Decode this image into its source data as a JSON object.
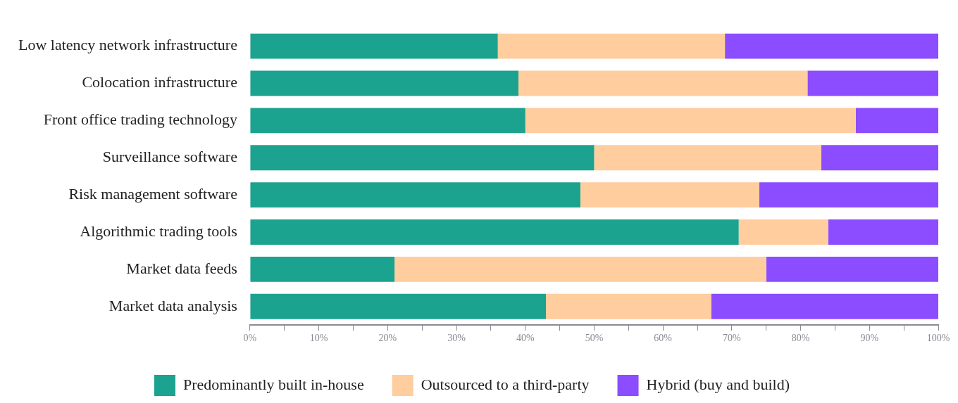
{
  "chart_data": {
    "type": "bar",
    "orientation": "horizontal",
    "stacked": true,
    "categories": [
      "Low latency network infrastructure",
      "Colocation infrastructure",
      "Front office trading technology",
      "Surveillance software",
      "Risk management software",
      "Algorithmic trading tools",
      "Market data feeds",
      "Market data analysis"
    ],
    "series": [
      {
        "name": "Predominantly built in-house",
        "color": "#1ba38f",
        "values": [
          36,
          39,
          40,
          50,
          48,
          71,
          21,
          43
        ]
      },
      {
        "name": "Outsourced to a third-party",
        "color": "#ffcd9e",
        "values": [
          33,
          42,
          48,
          33,
          26,
          13,
          54,
          24
        ]
      },
      {
        "name": "Hybrid (buy and build)",
        "color": "#8b4dff",
        "values": [
          31,
          19,
          12,
          17,
          26,
          16,
          25,
          33
        ]
      }
    ],
    "xlim": [
      0,
      100
    ],
    "xticks": [
      {
        "value": 0,
        "label": "0%"
      },
      {
        "value": 5,
        "label": null
      },
      {
        "value": 10,
        "label": "10%"
      },
      {
        "value": 15,
        "label": null
      },
      {
        "value": 20,
        "label": "20%"
      },
      {
        "value": 25,
        "label": null
      },
      {
        "value": 30,
        "label": "30%"
      },
      {
        "value": 35,
        "label": null
      },
      {
        "value": 40,
        "label": "40%"
      },
      {
        "value": 45,
        "label": null
      },
      {
        "value": 50,
        "label": "50%"
      },
      {
        "value": 55,
        "label": null
      },
      {
        "value": 60,
        "label": "60%"
      },
      {
        "value": 65,
        "label": null
      },
      {
        "value": 70,
        "label": "70%"
      },
      {
        "value": 75,
        "label": null
      },
      {
        "value": 80,
        "label": "80%"
      },
      {
        "value": 85,
        "label": null
      },
      {
        "value": 90,
        "label": "90%"
      },
      {
        "value": 95,
        "label": null
      },
      {
        "value": 100,
        "label": "100%"
      }
    ],
    "grid": false,
    "legend": "bottom"
  }
}
